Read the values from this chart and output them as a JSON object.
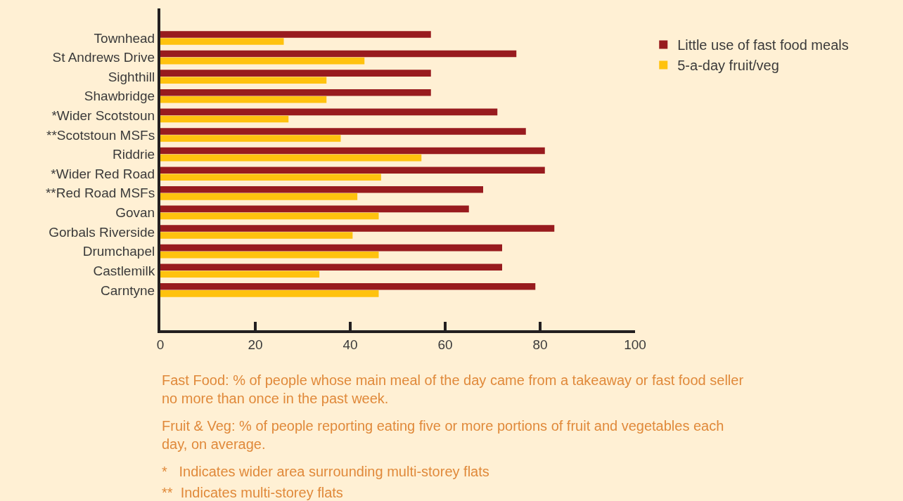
{
  "chart_data": {
    "type": "bar",
    "orientation": "horizontal",
    "categories": [
      "Townhead",
      "St Andrews Drive",
      "Sighthill",
      "Shawbridge",
      "*Wider Scotstoun",
      "**Scotstoun MSFs",
      "Riddrie",
      "*Wider Red Road",
      "**Red Road MSFs",
      "Govan",
      "Gorbals Riverside",
      "Drumchapel",
      "Castlemilk",
      "Carntyne"
    ],
    "series": [
      {
        "name": "Little use of fast food meals",
        "color": "#981b1e",
        "values": [
          57,
          75,
          57,
          57,
          71,
          77,
          81,
          81,
          68,
          65,
          83,
          72,
          72,
          79
        ]
      },
      {
        "name": "5-a-day fruit/veg",
        "color": "#ffc20e",
        "values": [
          26,
          43,
          35,
          35,
          27,
          38,
          55,
          46.5,
          41.5,
          46,
          40.5,
          46,
          33.5,
          46
        ]
      }
    ],
    "xlim": [
      0,
      100
    ],
    "xticks": [
      0,
      20,
      40,
      60,
      80,
      100
    ],
    "grid": false,
    "legend": "top right",
    "annotations": [
      "Fast Food: % of people whose main meal of the day came from a takeaway or fast food seller no more than once in the past week.",
      "Fruit & Veg: % of people reporting eating five or more portions of fruit and vegetables each day, on average.",
      "*   Indicates wider area surrounding multi-storey flats",
      "**  Indicates multi-storey flats"
    ]
  }
}
